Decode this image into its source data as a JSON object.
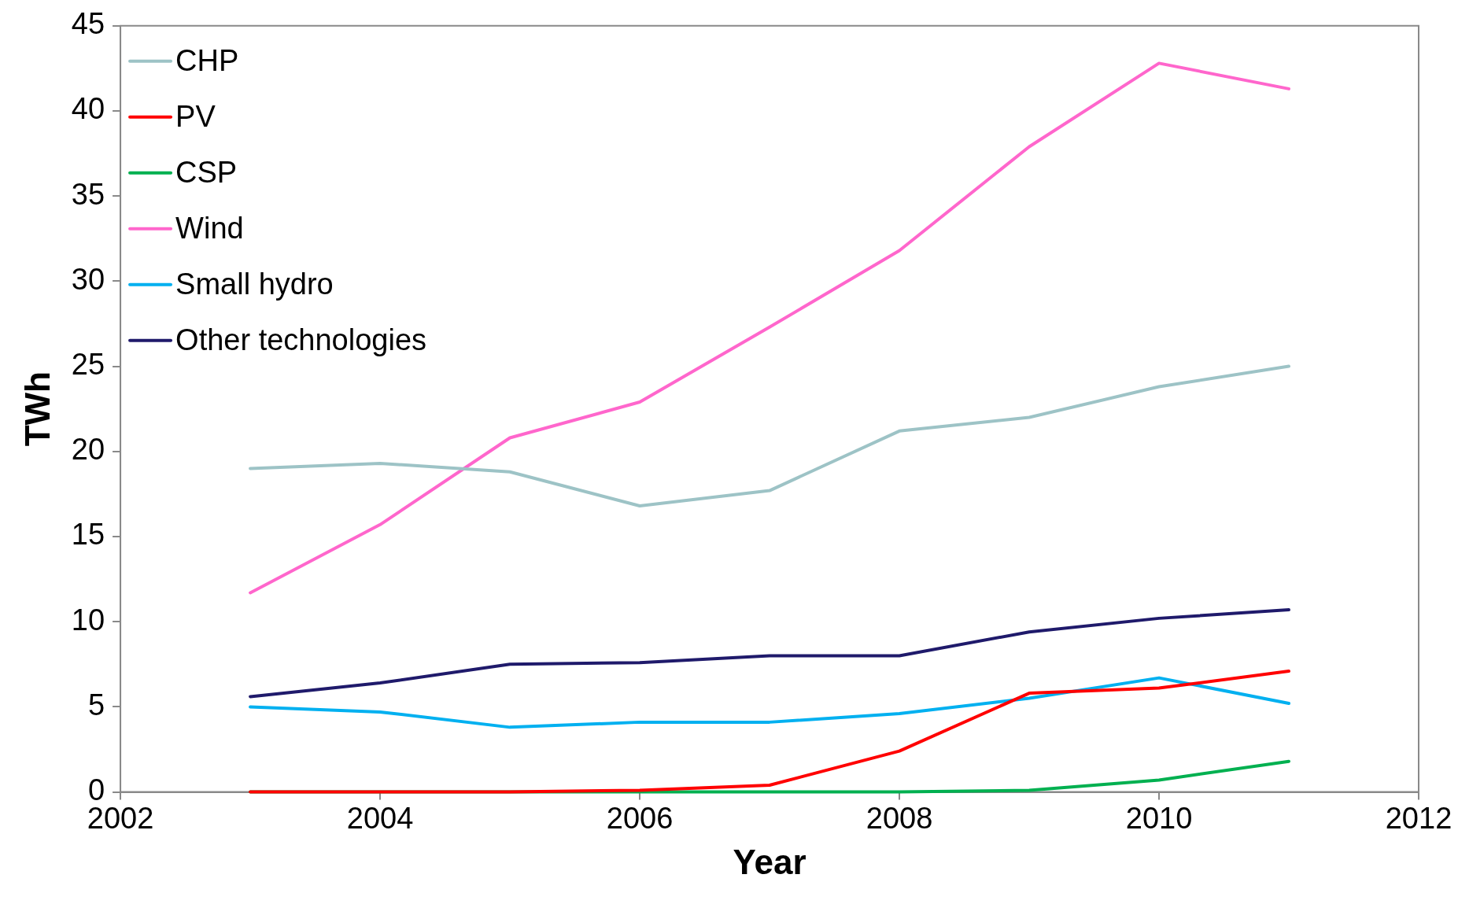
{
  "chart_data": {
    "type": "line",
    "xlabel": "Year",
    "ylabel": "TWh",
    "x": [
      2003,
      2004,
      2005,
      2006,
      2007,
      2008,
      2009,
      2010,
      2011
    ],
    "xlim": [
      2002,
      2012
    ],
    "xticks": [
      2002,
      2004,
      2006,
      2008,
      2010,
      2012
    ],
    "ylim": [
      0,
      45
    ],
    "yticks": [
      0,
      5,
      10,
      15,
      20,
      25,
      30,
      35,
      40,
      45
    ],
    "grid": false,
    "legend": "top left",
    "marker": "none",
    "line_style": "solid",
    "series": [
      {
        "name": "CHP",
        "color": "#9dc3c6",
        "values": [
          19.0,
          19.3,
          18.8,
          16.8,
          17.7,
          21.2,
          22.0,
          23.8,
          25.0
        ]
      },
      {
        "name": "PV",
        "color": "#ff0000",
        "values": [
          0,
          0,
          0,
          0.1,
          0.4,
          2.4,
          5.8,
          6.1,
          7.1
        ]
      },
      {
        "name": "CSP",
        "color": "#00b050",
        "values": [
          0,
          0,
          0,
          0,
          0,
          0,
          0.1,
          0.7,
          1.8
        ]
      },
      {
        "name": "Wind",
        "color": "#ff66cc",
        "values": [
          11.7,
          15.7,
          20.8,
          22.9,
          27.3,
          31.8,
          37.9,
          42.8,
          41.3
        ]
      },
      {
        "name": "Small hydro",
        "color": "#00b0f0",
        "values": [
          5.0,
          4.7,
          3.8,
          4.1,
          4.1,
          4.6,
          5.5,
          6.7,
          5.2
        ]
      },
      {
        "name": "Other technologies",
        "color": "#1f1a6b",
        "values": [
          5.6,
          6.4,
          7.5,
          7.6,
          8.0,
          8.0,
          9.4,
          10.2,
          10.7
        ]
      }
    ]
  }
}
